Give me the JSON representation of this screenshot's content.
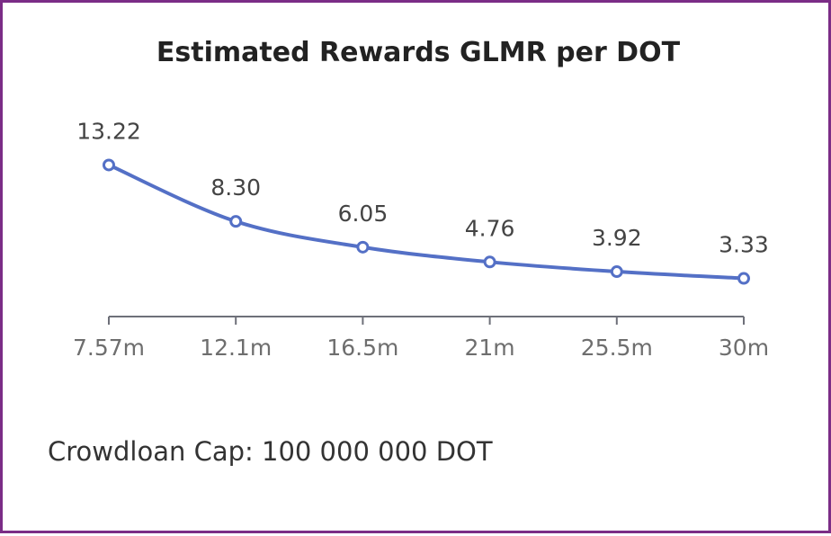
{
  "chart_data": {
    "type": "line",
    "title": "Estimated Rewards GLMR per DOT",
    "categories": [
      "7.57m",
      "12.1m",
      "16.5m",
      "21m",
      "25.5m",
      "30m"
    ],
    "series": [
      {
        "values": [
          13.22,
          8.3,
          6.05,
          4.76,
          3.92,
          3.33
        ],
        "labels": [
          "13.22",
          "8.30",
          "6.05",
          "4.76",
          "3.92",
          "3.33"
        ]
      }
    ],
    "line_color": "#5470c6",
    "smooth": true,
    "grid": false,
    "show_data_labels": true
  },
  "footer": {
    "text": "Crowdloan Cap: 100 000 000 DOT"
  },
  "colors": {
    "border": "#7b2d86",
    "axis": "#6e7079"
  }
}
